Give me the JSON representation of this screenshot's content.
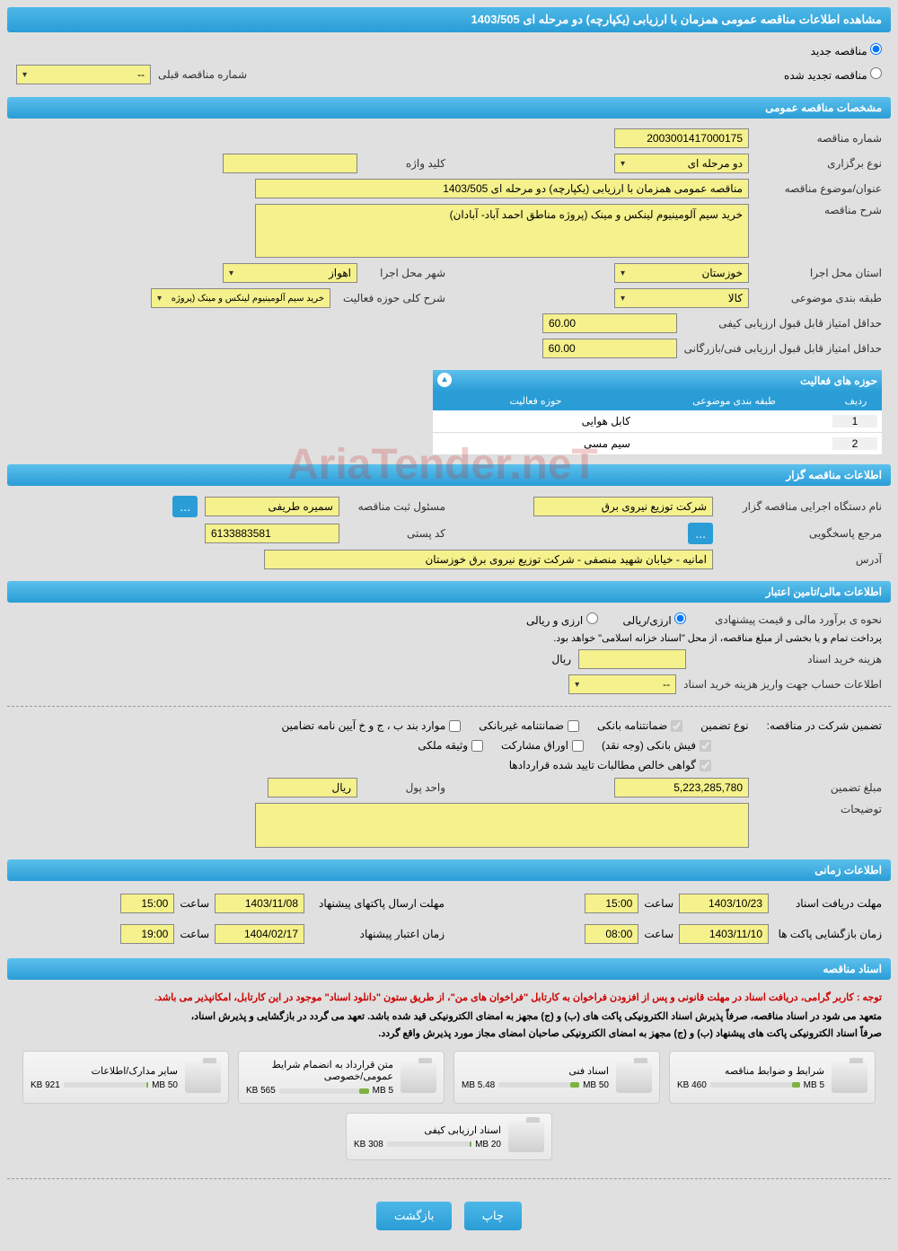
{
  "header": {
    "title": "مشاهده اطلاعات مناقصه عمومی همزمان با ارزیابی (یکپارچه) دو مرحله ای 1403/505"
  },
  "tender_type": {
    "new_label": "مناقصه جدید",
    "renewed_label": "مناقصه تجدید شده",
    "prev_number_label": "شماره مناقصه قبلی",
    "prev_number_value": "--"
  },
  "sections": {
    "general": "مشخصات مناقصه عمومی",
    "organizer": "اطلاعات مناقصه گزار",
    "financial": "اطلاعات مالی/تامین اعتبار",
    "timing": "اطلاعات زمانی",
    "documents": "اسناد مناقصه"
  },
  "general": {
    "number_label": "شماره مناقصه",
    "number_value": "2003001417000175",
    "holding_type_label": "نوع برگزاری",
    "holding_type_value": "دو مرحله ای",
    "keyword_label": "کلید واژه",
    "subject_label": "عنوان/موضوع مناقصه",
    "subject_value": "مناقصه عمومی همزمان با ارزیابی (یکپارچه) دو مرحله ای 1403/505",
    "desc_label": "شرح مناقصه",
    "desc_value": "خرید سیم آلومینیوم لینکس و مینک (پروژه مناطق احمد آباد- آبادان)",
    "province_label": "استان محل اجرا",
    "province_value": "خوزستان",
    "city_label": "شهر محل اجرا",
    "city_value": "اهواز",
    "category_label": "طبقه بندی موضوعی",
    "category_value": "کالا",
    "activity_desc_label": "شرح کلی حوزه فعالیت",
    "activity_desc_value": "خرید سیم آلومینیوم لینکس و مینک (پروژه",
    "min_quality_label": "حداقل امتیاز قابل قبول ارزیابی کیفی",
    "min_quality_value": "60.00",
    "min_tech_label": "حداقل امتیاز قابل قبول ارزیابی فنی/بازرگانی",
    "min_tech_value": "60.00"
  },
  "activity_table": {
    "title": "حوزه های فعالیت",
    "col_idx": "ردیف",
    "col_cat": "طبقه بندی موضوعی",
    "col_act": "حوزه فعالیت",
    "rows": [
      {
        "idx": "1",
        "cat": "",
        "act": "کابل هوایی"
      },
      {
        "idx": "2",
        "cat": "",
        "act": "سیم مسی"
      }
    ]
  },
  "organizer": {
    "org_name_label": "نام دستگاه اجرایی مناقصه گزار",
    "org_name_value": "شرکت توزیع نیروی برق",
    "responsible_label": "مسئول ثبت مناقصه",
    "responsible_value": "سمیره طریفی",
    "response_ref_label": "مرجع پاسخگویی",
    "postal_label": "کد پستی",
    "postal_value": "6133883581",
    "address_label": "آدرس",
    "address_value": "امانیه - خیابان شهید منصفی - شرکت توزیع نیروی برق خوزستان"
  },
  "financial": {
    "estimate_label": "نحوه ی برآورد مالی و قیمت پیشنهادی",
    "rial_option": "ارزی/ریالی",
    "both_option": "ارزی و ریالی",
    "payment_note": "پرداخت تمام و یا بخشی از مبلغ مناقصه، از محل \"اسناد خزانه اسلامی\" خواهد بود.",
    "doc_cost_label": "هزینه خرید اسناد",
    "doc_cost_unit": "ریال",
    "account_label": "اطلاعات حساب جهت واریز هزینه خرید اسناد",
    "account_value": "--",
    "guarantee_label": "تضمین شرکت در مناقصه:",
    "guarantee_type_label": "نوع تضمین",
    "chk_bank_guarantee": "ضمانتنامه بانکی",
    "chk_nonbank_guarantee": "ضمانتنامه غیربانکی",
    "chk_regulation": "موارد بند ب ، ج و خ آیین نامه تضامین",
    "chk_bank_receipt": "فیش بانکی (وجه نقد)",
    "chk_bonds": "اوراق مشارکت",
    "chk_property": "وثیقه ملکی",
    "chk_receivables": "گواهی خالص مطالبات تایید شده قراردادها",
    "amount_label": "مبلغ تضمین",
    "amount_value": "5,223,285,780",
    "unit_label": "واحد پول",
    "unit_value": "ریال",
    "notes_label": "توضیحات"
  },
  "timing": {
    "receive_deadline_label": "مهلت دریافت اسناد",
    "receive_deadline_date": "1403/10/23",
    "receive_deadline_time": "15:00",
    "send_deadline_label": "مهلت ارسال پاکتهای پیشنهاد",
    "send_deadline_date": "1403/11/08",
    "send_deadline_time": "15:00",
    "open_label": "زمان بازگشایی پاکت ها",
    "open_date": "1403/11/10",
    "open_time": "08:00",
    "validity_label": "زمان اعتبار پیشنهاد",
    "validity_date": "1404/02/17",
    "validity_time": "19:00",
    "time_label": "ساعت"
  },
  "documents": {
    "note1": "توجه : کاربر گرامی، دریافت اسناد در مهلت قانونی و پس از افزودن فراخوان به کارتابل \"فراخوان های من\"، از طریق ستون \"دانلود اسناد\" موجود در این کارتابل، امکانپذیر می باشد.",
    "note2": "متعهد می شود در اسناد مناقصه، صرفاً پذیرش اسناد الکترونیکی پاکت های (ب) و (ج) مجهز به امضای الکترونیکی قید شده باشد. تعهد می گردد در بازگشایی و پذیرش اسناد،",
    "note3": "صرفاً اسناد الکترونیکی پاکت های پیشنهاد (ب) و (ج) مجهز به امضای الکترونیکی صاحبان امضای مجاز مورد پذیرش واقع گردد.",
    "files": [
      {
        "title": "شرایط و ضوابط مناقصه",
        "size": "460 KB",
        "max": "5 MB",
        "fill": 9
      },
      {
        "title": "اسناد فنی",
        "size": "5.48 MB",
        "max": "50 MB",
        "fill": 11
      },
      {
        "title": "متن قرارداد به انضمام شرایط عمومی/خصوصی",
        "size": "565 KB",
        "max": "5 MB",
        "fill": 11
      },
      {
        "title": "سایر مدارک/اطلاعات",
        "size": "921 KB",
        "max": "50 MB",
        "fill": 2
      },
      {
        "title": "اسناد ارزیابی کیفی",
        "size": "308 KB",
        "max": "20 MB",
        "fill": 2
      }
    ]
  },
  "buttons": {
    "print": "چاپ",
    "back": "بازگشت"
  },
  "watermark": "AriaTender.neT",
  "colors": {
    "header_bg": "#2a9dd6",
    "field_bg": "#f5f18c"
  }
}
